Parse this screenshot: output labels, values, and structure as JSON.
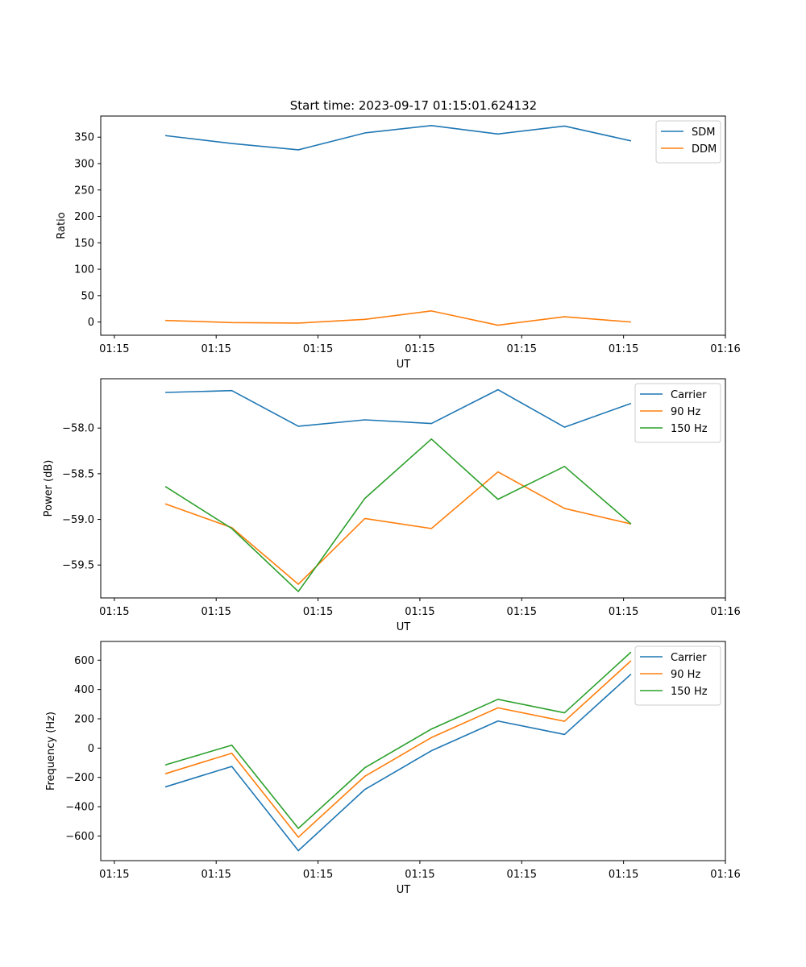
{
  "figure": {
    "title": "Start time: 2023-09-17 01:15:01.624132"
  },
  "colors": {
    "blue": "#1f77b4",
    "orange": "#ff7f0e",
    "green": "#2ca02c"
  },
  "chart_data": [
    {
      "type": "line",
      "title": "Start time: 2023-09-17 01:15:01.624132",
      "xlabel": "UT",
      "ylabel": "Ratio",
      "xlim": [
        -0.2,
        9.0
      ],
      "ylim": [
        -25,
        390
      ],
      "x_ticks": [
        0,
        1.5,
        3,
        4.5,
        6,
        7.5,
        9
      ],
      "x_tick_labels": [
        "01:15",
        "01:15",
        "01:15",
        "01:15",
        "01:15",
        "01:15",
        "01:16"
      ],
      "y_ticks": [
        0,
        50,
        100,
        150,
        200,
        250,
        300,
        350
      ],
      "y_tick_labels": [
        "0",
        "50",
        "100",
        "150",
        "200",
        "250",
        "300",
        "350"
      ],
      "legend_position": "top-right",
      "x": [
        0.75,
        1.73,
        2.71,
        3.69,
        4.67,
        5.65,
        6.63,
        7.61
      ],
      "series": [
        {
          "name": "SDM",
          "color": "#1f77b4",
          "values": [
            353,
            338,
            326,
            358,
            372,
            356,
            371,
            343
          ]
        },
        {
          "name": "DDM",
          "color": "#ff7f0e",
          "values": [
            3,
            -1,
            -2,
            5,
            21,
            -6,
            10,
            0
          ]
        }
      ]
    },
    {
      "type": "line",
      "xlabel": "UT",
      "ylabel": "Power (dB)",
      "xlim": [
        -0.2,
        9.0
      ],
      "ylim": [
        -59.86,
        -57.46
      ],
      "x_ticks": [
        0,
        1.5,
        3,
        4.5,
        6,
        7.5,
        9
      ],
      "x_tick_labels": [
        "01:15",
        "01:15",
        "01:15",
        "01:15",
        "01:15",
        "01:15",
        "01:16"
      ],
      "y_ticks": [
        -59.5,
        -59.0,
        -58.5,
        -58.0
      ],
      "y_tick_labels": [
        "−59.5",
        "−59.0",
        "−58.5",
        "−58.0"
      ],
      "legend_position": "top-right",
      "x": [
        0.75,
        1.73,
        2.71,
        3.69,
        4.67,
        5.65,
        6.63,
        7.61
      ],
      "series": [
        {
          "name": "Carrier",
          "color": "#1f77b4",
          "values": [
            -57.61,
            -57.59,
            -57.98,
            -57.91,
            -57.95,
            -57.58,
            -57.99,
            -57.73
          ]
        },
        {
          "name": "90 Hz",
          "color": "#ff7f0e",
          "values": [
            -58.83,
            -59.09,
            -59.71,
            -58.99,
            -59.1,
            -58.48,
            -58.88,
            -59.05
          ]
        },
        {
          "name": "150 Hz",
          "color": "#2ca02c",
          "values": [
            -58.64,
            -59.1,
            -59.79,
            -58.77,
            -58.12,
            -58.78,
            -58.42,
            -59.05
          ]
        }
      ]
    },
    {
      "type": "line",
      "xlabel": "UT",
      "ylabel": "Frequency (Hz)",
      "xlim": [
        -0.2,
        9.0
      ],
      "ylim": [
        -768,
        728
      ],
      "x_ticks": [
        0,
        1.5,
        3,
        4.5,
        6,
        7.5,
        9
      ],
      "x_tick_labels": [
        "01:15",
        "01:15",
        "01:15",
        "01:15",
        "01:15",
        "01:15",
        "01:16"
      ],
      "y_ticks": [
        -600,
        -400,
        -200,
        0,
        200,
        400,
        600
      ],
      "y_tick_labels": [
        "−600",
        "−400",
        "−200",
        "0",
        "200",
        "400",
        "600"
      ],
      "legend_position": "top-right",
      "x": [
        0.75,
        1.73,
        2.71,
        3.69,
        4.67,
        5.65,
        6.63,
        7.61
      ],
      "series": [
        {
          "name": "Carrier",
          "color": "#1f77b4",
          "values": [
            -265,
            -125,
            -700,
            -282,
            -18,
            185,
            93,
            505
          ]
        },
        {
          "name": "90 Hz",
          "color": "#ff7f0e",
          "values": [
            -175,
            -35,
            -608,
            -192,
            72,
            275,
            183,
            596
          ]
        },
        {
          "name": "150 Hz",
          "color": "#2ca02c",
          "values": [
            -115,
            20,
            -548,
            -134,
            130,
            333,
            241,
            655
          ]
        }
      ]
    }
  ]
}
